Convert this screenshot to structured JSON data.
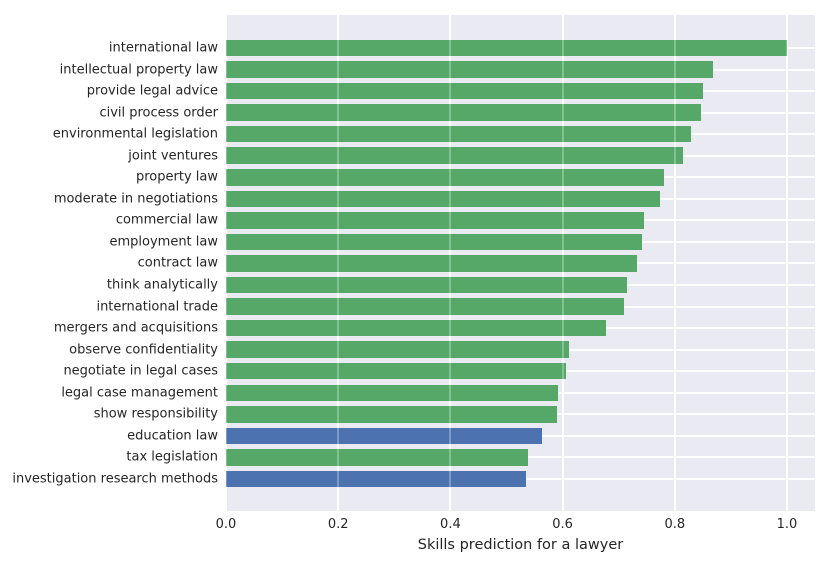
{
  "chart_data": {
    "type": "bar",
    "orientation": "horizontal",
    "title": "",
    "xlabel": "Skills prediction for a lawyer",
    "ylabel": "",
    "xlim": [
      0,
      1.05
    ],
    "xtick_labels": [
      "0.0",
      "0.2",
      "0.4",
      "0.6",
      "0.8",
      "1.0"
    ],
    "grid": true,
    "legend": false,
    "plot_bg_color": "#EAEAF2",
    "grid_color": "#FFFFFF",
    "text_color": "#262626",
    "palette": {
      "green": "#55A868",
      "blue": "#4C72B0"
    },
    "categories": [
      "international law",
      "intellectual property law",
      "provide legal advice",
      "civil process order",
      "environmental legislation",
      "joint ventures",
      "property law",
      "moderate in negotiations",
      "commercial law",
      "employment law",
      "contract law",
      "think analytically",
      "international trade",
      "mergers and acquisitions",
      "observe confidentiality",
      "negotiate in legal cases",
      "legal case management",
      "show responsibility",
      "education law",
      "tax legislation",
      "investigation research methods"
    ],
    "values": [
      1.0,
      0.868,
      0.85,
      0.846,
      0.828,
      0.815,
      0.781,
      0.773,
      0.745,
      0.741,
      0.733,
      0.715,
      0.709,
      0.678,
      0.612,
      0.606,
      0.591,
      0.59,
      0.564,
      0.539,
      0.535
    ],
    "bar_colors": [
      "#55A868",
      "#55A868",
      "#55A868",
      "#55A868",
      "#55A868",
      "#55A868",
      "#55A868",
      "#55A868",
      "#55A868",
      "#55A868",
      "#55A868",
      "#55A868",
      "#55A868",
      "#55A868",
      "#55A868",
      "#55A868",
      "#55A868",
      "#55A868",
      "#4C72B0",
      "#55A868",
      "#4C72B0"
    ]
  }
}
